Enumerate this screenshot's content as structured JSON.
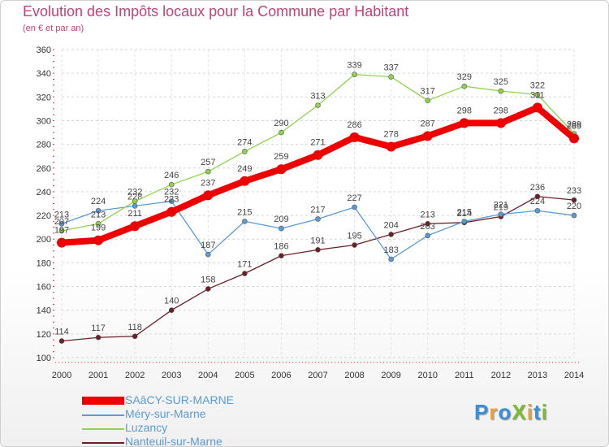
{
  "chart_data": {
    "type": "line",
    "title": "Evolution des Impôts locaux pour la Commune par Habitant",
    "subtitle": "(en € et par an)",
    "x": [
      "2000",
      "2001",
      "2002",
      "2003",
      "2004",
      "2005",
      "2006",
      "2007",
      "2008",
      "2009",
      "2010",
      "2011",
      "2012",
      "2013",
      "2014"
    ],
    "ylim": [
      100,
      360
    ],
    "yticks": [
      100,
      120,
      140,
      160,
      180,
      200,
      220,
      240,
      260,
      280,
      300,
      320,
      340,
      360
    ],
    "grid": true,
    "series": [
      {
        "name": "Nanteuil-sur-Marne",
        "color": "#6b1f27",
        "values": [
          114,
          117,
          118,
          140,
          158,
          171,
          186,
          191,
          195,
          204,
          213,
          214,
          219,
          236,
          233
        ]
      },
      {
        "name": "Méry-sur-Marne",
        "color": "#5b9bd5",
        "values": [
          213,
          224,
          228,
          232,
          187,
          215,
          209,
          217,
          227,
          183,
          203,
          215,
          221,
          224,
          220
        ]
      },
      {
        "name": "Luzancy",
        "color": "#8ed44a",
        "values": [
          207,
          213,
          232,
          246,
          257,
          274,
          290,
          313,
          339,
          337,
          317,
          329,
          325,
          322,
          289
        ]
      },
      {
        "name": "SAâCY-SUR-MARNE",
        "color": "#ee0000",
        "values": [
          197,
          199,
          211,
          223,
          237,
          249,
          259,
          271,
          286,
          278,
          287,
          298,
          298,
          311,
          285
        ]
      }
    ]
  },
  "legend": {
    "items": [
      {
        "label": "SAâCY-SUR-MARNE",
        "color": "#ee0000"
      },
      {
        "label": "Méry-sur-Marne",
        "color": "#5b9bd5"
      },
      {
        "label": "Luzancy",
        "color": "#8ed44a"
      },
      {
        "label": "Nanteuil-sur-Marne",
        "color": "#6b1f27"
      }
    ]
  },
  "logo": {
    "text": "ProXiti"
  }
}
